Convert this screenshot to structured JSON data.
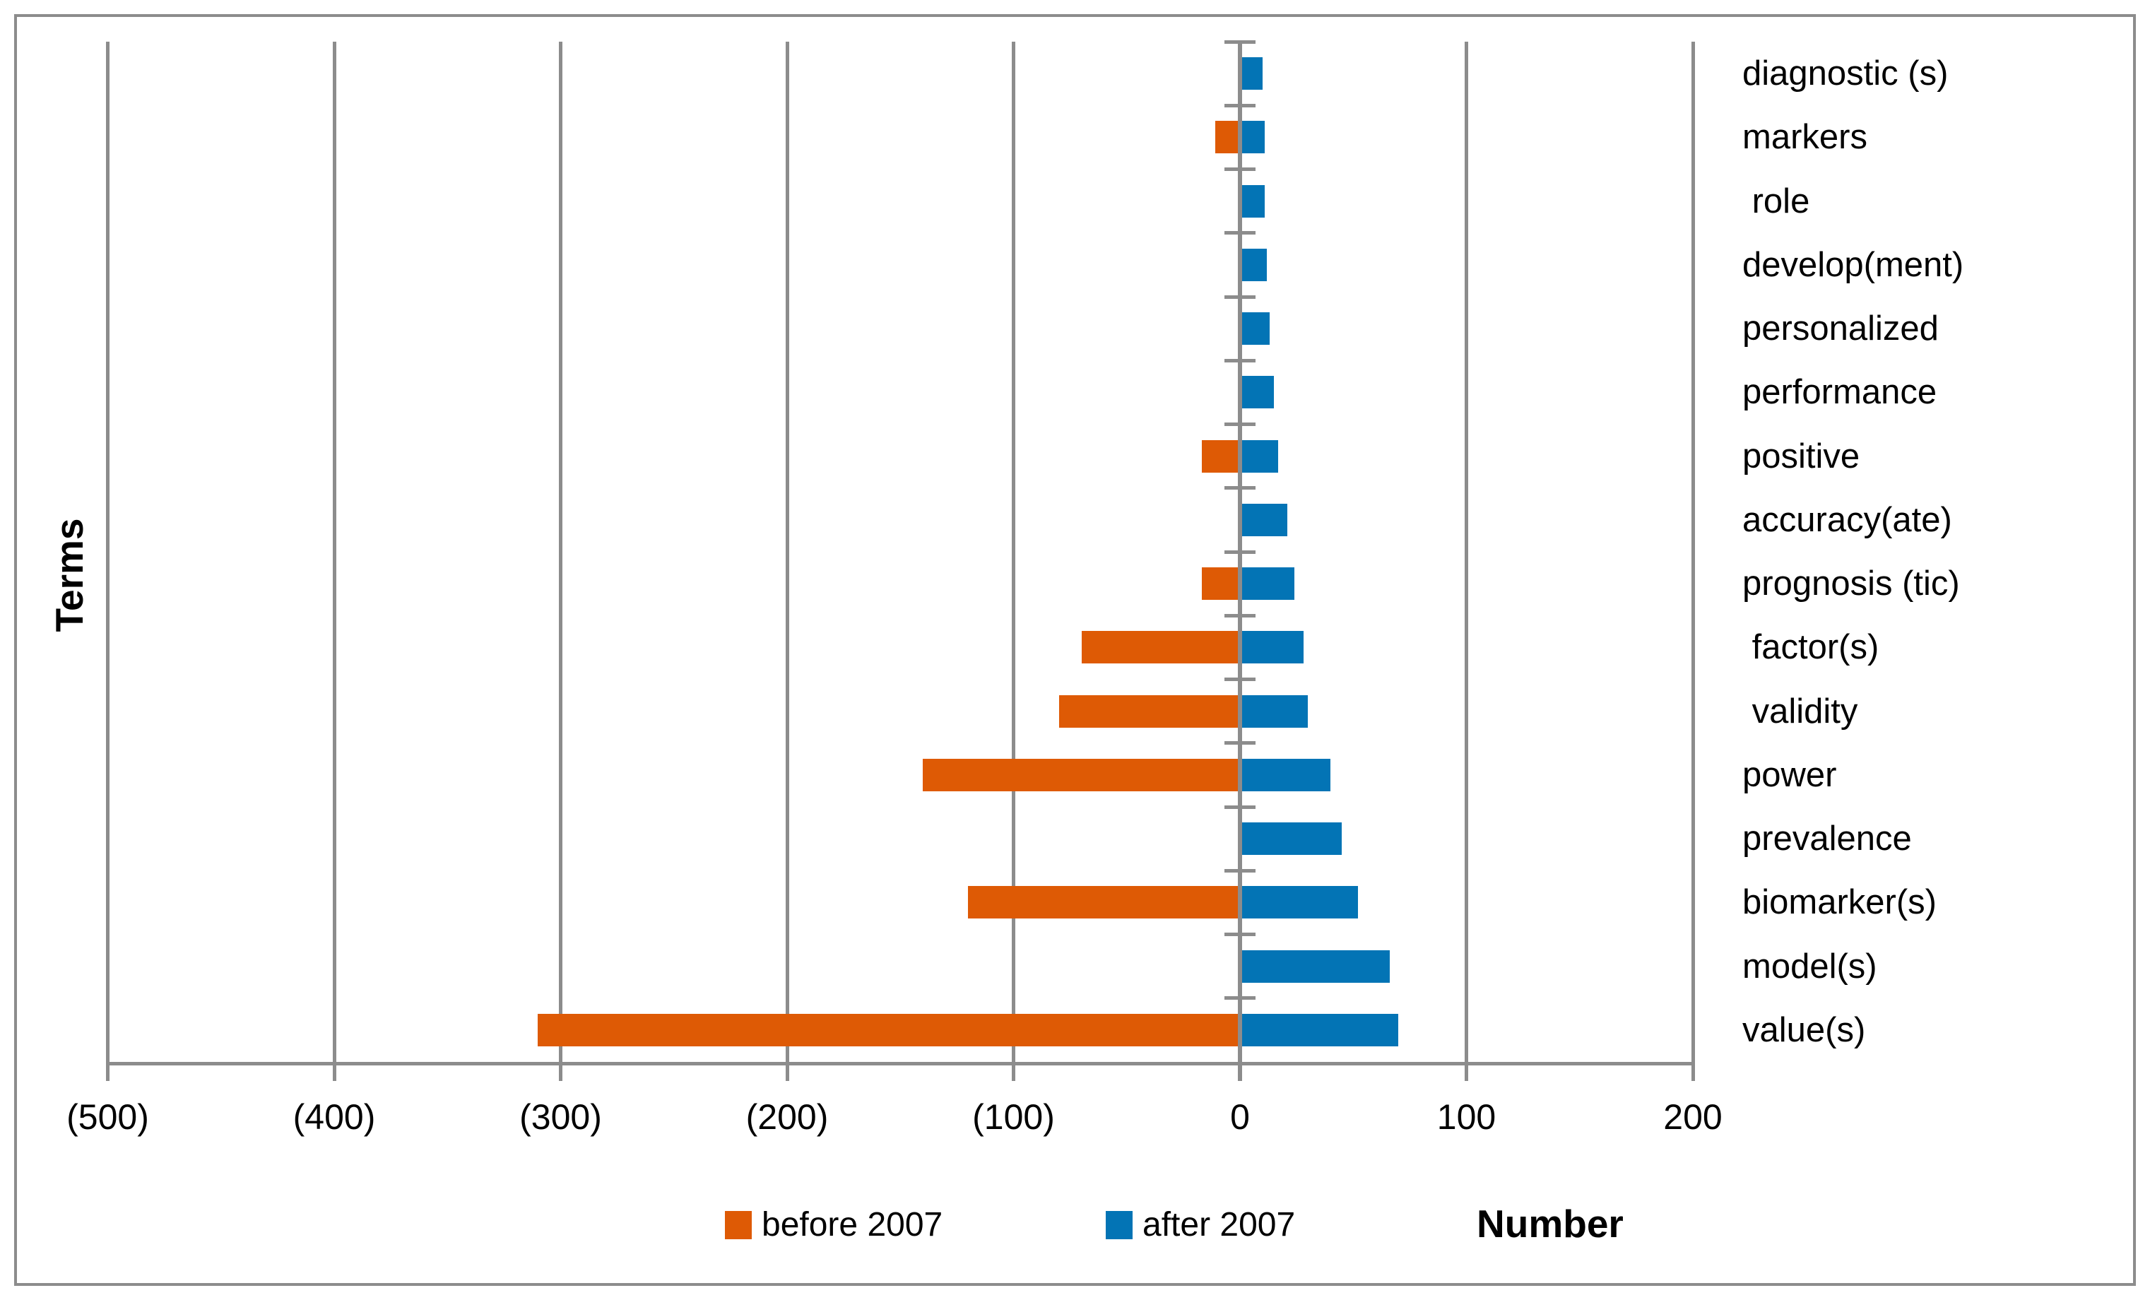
{
  "chart_data": {
    "type": "bar",
    "variant": "horizontal-diverging",
    "title": "",
    "xlabel": "Number",
    "ylabel": "Terms",
    "categories": [
      "diagnostic (s)",
      "markers",
      " role",
      "develop(ment)",
      "personalized",
      "performance",
      "positive",
      "accuracy(ate)",
      "prognosis (tic)",
      " factor(s)",
      " validity",
      "power",
      "prevalence",
      "biomarker(s)",
      "model(s)",
      "value(s)"
    ],
    "series": [
      {
        "name": "before 2007",
        "color": "#de5a05",
        "direction": "negative",
        "values": [
          0,
          11,
          0,
          0,
          0,
          0,
          17,
          0,
          17,
          70,
          80,
          140,
          0,
          120,
          0,
          310
        ]
      },
      {
        "name": "after 2007",
        "color": "#0374b5",
        "direction": "positive",
        "values": [
          10,
          11,
          11,
          12,
          13,
          15,
          17,
          21,
          24,
          28,
          30,
          40,
          45,
          52,
          66,
          70
        ]
      }
    ],
    "xlim": [
      -500,
      200
    ],
    "x_ticks": [
      {
        "value": -500,
        "label": "(500)"
      },
      {
        "value": -400,
        "label": "(400)"
      },
      {
        "value": -300,
        "label": "(300)"
      },
      {
        "value": -200,
        "label": "(200)"
      },
      {
        "value": -100,
        "label": "(100)"
      },
      {
        "value": 0,
        "label": "0"
      },
      {
        "value": 100,
        "label": "100"
      },
      {
        "value": 200,
        "label": "200"
      }
    ],
    "grid": "vertical-only",
    "legend_position": "bottom"
  },
  "legend": {
    "items": [
      {
        "label": "before 2007",
        "color": "#de5a05"
      },
      {
        "label": "after 2007",
        "color": "#0374b5"
      }
    ]
  },
  "colors": {
    "before": "#de5a05",
    "after": "#0374b5",
    "axis_gray": "#8c8c8c",
    "text": "#000000",
    "background": "#ffffff"
  }
}
